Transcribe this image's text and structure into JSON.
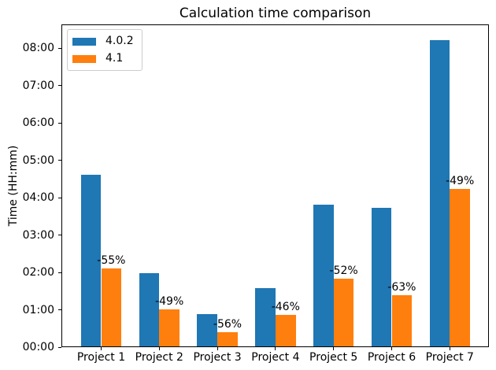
{
  "chart_data": {
    "type": "bar",
    "title": "Calculation time comparison",
    "xlabel": "",
    "ylabel": "Time (HH:mm)",
    "categories": [
      "Project 1",
      "Project 2",
      "Project 3",
      "Project 4",
      "Project 5",
      "Project 6",
      "Project 7"
    ],
    "series": [
      {
        "name": "4.0.2",
        "color": "#1f77b4",
        "values_minutes": [
          276,
          118,
          52,
          94,
          227,
          222,
          492
        ],
        "values_hhmm": [
          "04:36",
          "01:58",
          "00:52",
          "01:34",
          "03:47",
          "03:42",
          "08:12"
        ]
      },
      {
        "name": "4.1",
        "color": "#ff7f0e",
        "values_minutes": [
          125,
          60,
          23,
          51,
          109,
          82,
          253
        ],
        "values_hhmm": [
          "02:05",
          "01:00",
          "00:23",
          "00:51",
          "01:49",
          "01:22",
          "04:13"
        ]
      }
    ],
    "bar_annotations": [
      "-55%",
      "-49%",
      "-56%",
      "-46%",
      "-52%",
      "-63%",
      "-49%"
    ],
    "yticks": [
      "00:00",
      "01:00",
      "02:00",
      "03:00",
      "04:00",
      "05:00",
      "06:00",
      "07:00",
      "08:00"
    ],
    "ylim_minutes": [
      0,
      517
    ],
    "legend_position": "upper left",
    "grid": false
  }
}
